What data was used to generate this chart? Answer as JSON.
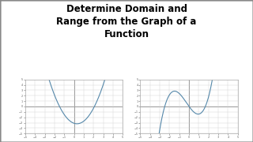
{
  "title_line1": "Determine Domain and",
  "title_line2": "Range from the Graph of a",
  "title_line3": "Function",
  "title_fontsize": 8.5,
  "title_fontweight": "bold",
  "bg_color": "#ffffff",
  "outer_border_color": "#888888",
  "grid_color": "#d0d0d0",
  "axis_color": "#666666",
  "curve_color": "#5588aa",
  "curve_linewidth": 0.8,
  "graph1_xlim": [
    -5,
    5
  ],
  "graph1_ylim": [
    -5,
    5
  ],
  "graph2_xlim": [
    -5,
    5
  ],
  "graph2_ylim": [
    -5,
    5
  ]
}
